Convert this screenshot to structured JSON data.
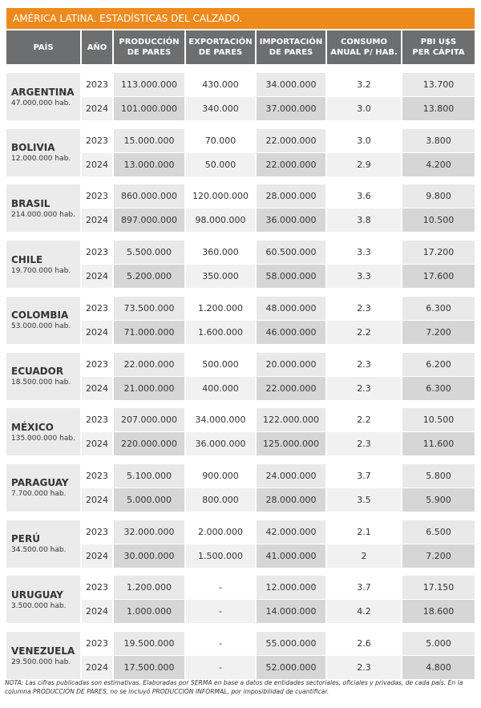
{
  "title": "AMÉRICA LATINA. ESTADÍSTICAS DEL CALZADO.",
  "header": [
    [
      "PAÍS"
    ],
    [
      "AÑO"
    ],
    [
      "PRODUCCIÓN",
      "DE PARES"
    ],
    [
      "EXPORTACIÓN",
      "DE PARES"
    ],
    [
      "IMPORTACIÓN",
      "DE PARES"
    ],
    [
      "CONSUMO",
      "ANUAL P/ HAB."
    ],
    [
      "PBI U$S",
      "PER CÁPITA"
    ]
  ],
  "rows": [
    {
      "country": "ARGENTINA",
      "population": "47.000.000 hab.",
      "years": [
        [
          "2023",
          "113.000.000",
          "430.000",
          "34.000.000",
          "3.2",
          "13.700"
        ],
        [
          "2024",
          "101.000.000",
          "340.000",
          "37.000.000",
          "3.0",
          "13.800"
        ]
      ]
    },
    {
      "country": "BOLIVIA",
      "population": "12.000.000 hab.",
      "years": [
        [
          "2023",
          "15.000.000",
          "70.000",
          "22.000.000",
          "3.0",
          "3.800"
        ],
        [
          "2024",
          "13.000.000",
          "50.000",
          "22.000.000",
          "2.9",
          "4.200"
        ]
      ]
    },
    {
      "country": "BRASIL",
      "population": "214.000.000 hab.",
      "years": [
        [
          "2023",
          "860.000.000",
          "120.000.000",
          "28.000.000",
          "3.6",
          "9.800"
        ],
        [
          "2024",
          "897.000.000",
          "98.000.000",
          "36.000.000",
          "3.8",
          "10.500"
        ]
      ]
    },
    {
      "country": "CHILE",
      "population": "19.700.000 hab.",
      "years": [
        [
          "2023",
          "5.500.000",
          "360.000",
          "60.500.000",
          "3.3",
          "17.200"
        ],
        [
          "2024",
          "5.200.000",
          "350.000",
          "58.000.000",
          "3.3",
          "17.600"
        ]
      ]
    },
    {
      "country": "COLOMBIA",
      "population": "53.000.000 hab.",
      "years": [
        [
          "2023",
          "73.500.000",
          "1.200.000",
          "48.000.000",
          "2.3",
          "6.300"
        ],
        [
          "2024",
          "71.000.000",
          "1.600.000",
          "46.000.000",
          "2.2",
          "7.200"
        ]
      ]
    },
    {
      "country": "ECUADOR",
      "population": "18.500.000 hab.",
      "years": [
        [
          "2023",
          "22.000.000",
          "500.000",
          "20.000.000",
          "2.3",
          "6.200"
        ],
        [
          "2024",
          "21.000.000",
          "400.000",
          "22.000.000",
          "2.3",
          "6.300"
        ]
      ]
    },
    {
      "country": "MÉXICO",
      "population": "135.000.000 hab.",
      "years": [
        [
          "2023",
          "207.000.000",
          "34.000.000",
          "122.000.000",
          "2.2",
          "10.500"
        ],
        [
          "2024",
          "220.000.000",
          "36.000.000",
          "125.000.000",
          "2.3",
          "11.600"
        ]
      ]
    },
    {
      "country": "PARAGUAY",
      "population": "7.700.000 hab.",
      "years": [
        [
          "2023",
          "5.100.000",
          "900.000",
          "24.000.000",
          "3.7",
          "5.800"
        ],
        [
          "2024",
          "5.000.000",
          "800.000",
          "28.000.000",
          "3.5",
          "5.900"
        ]
      ]
    },
    {
      "country": "PERÚ",
      "population": "34.500.00 hab.",
      "years": [
        [
          "2023",
          "32.000.000",
          "2.000.000",
          "42.000.000",
          "2.1",
          "6.500"
        ],
        [
          "2024",
          "30.000.000",
          "1.500.000",
          "41.000.000",
          "2",
          "7.200"
        ]
      ]
    },
    {
      "country": "URUGUAY",
      "population": "3.500.000 hab.",
      "years": [
        [
          "2023",
          "1.200.000",
          "-",
          "12.000.000",
          "3.7",
          "17.150"
        ],
        [
          "2024",
          "1.000.000",
          "-",
          "14.000.000",
          "4.2",
          "18.600"
        ]
      ]
    },
    {
      "country": "VENEZUELA",
      "population": "29.500.000 hab.",
      "years": [
        [
          "2023",
          "19.500.000",
          "-",
          "55.000.000",
          "2.6",
          "5.000"
        ],
        [
          "2024",
          "17.500.000",
          "-",
          "52.000.000",
          "2.3",
          "4.800"
        ]
      ]
    }
  ],
  "note": "NOTA: Las cifras publicadas son estimativas. Elaboradas por SERMA en base a datos de entidades sectoriales, oficiales y privadas, de cada país. En la columna PRODUCCIÓN DE PARES, no se incluyó PRODUCCIÓN INFORMAL, por imposibilidad de cuantificar."
}
